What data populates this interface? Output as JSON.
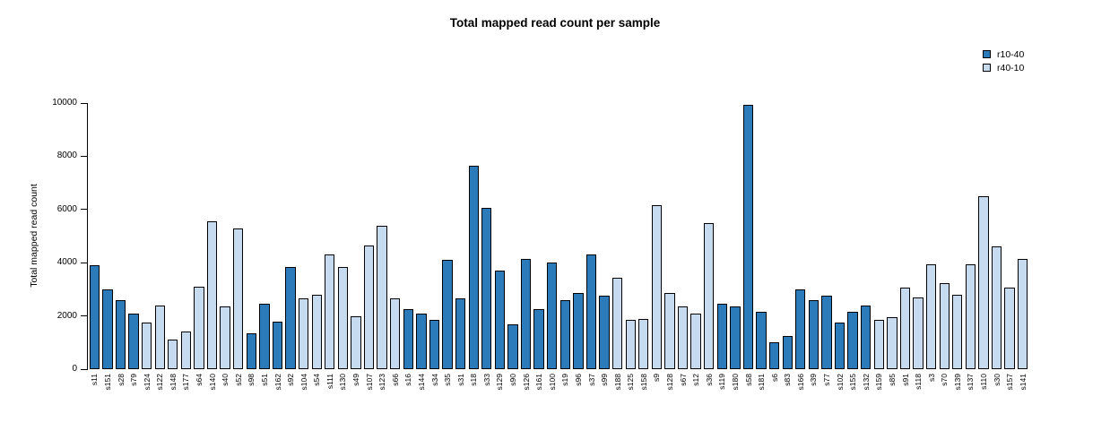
{
  "legend": [
    {
      "label": "r10-40",
      "color": "#2B7BBA"
    },
    {
      "label": "r40-10",
      "color": "#C6DBEF"
    }
  ],
  "chart_data": {
    "type": "bar",
    "title": "Total mapped read count per sample",
    "xlabel": "",
    "ylabel": "Total mapped read count",
    "ylim": [
      0,
      10000
    ],
    "yticks": [
      0,
      2000,
      4000,
      6000,
      8000,
      10000
    ],
    "legend_position": "top-right",
    "grid": false,
    "categories": [
      "s11",
      "s151",
      "s28",
      "s79",
      "s124",
      "s122",
      "s148",
      "s177",
      "s64",
      "s140",
      "s40",
      "s52",
      "s98",
      "s51",
      "s162",
      "s92",
      "s104",
      "s54",
      "s111",
      "s130",
      "s49",
      "s107",
      "s123",
      "s66",
      "s16",
      "s144",
      "s34",
      "s35",
      "s31",
      "s18",
      "s33",
      "s129",
      "s90",
      "s126",
      "s161",
      "s100",
      "s19",
      "s96",
      "s37",
      "s99",
      "s188",
      "s125",
      "s158",
      "s9",
      "s128",
      "s67",
      "s12",
      "s36",
      "s119",
      "s180",
      "s58",
      "s181",
      "s6",
      "s83",
      "s166",
      "s39",
      "s77",
      "s102",
      "s155",
      "s132",
      "s159",
      "s85",
      "s91",
      "s118",
      "s3",
      "s70",
      "s139",
      "s137",
      "s110",
      "s30",
      "s157",
      "s141"
    ],
    "values": [
      3900,
      3000,
      2600,
      2100,
      1750,
      2400,
      1100,
      1400,
      3100,
      5550,
      2350,
      5300,
      1350,
      2450,
      1800,
      3850,
      2650,
      2800,
      4300,
      3850,
      2000,
      4650,
      5400,
      2650,
      2250,
      2100,
      1850,
      4100,
      2650,
      7650,
      6050,
      3700,
      1700,
      4150,
      2250,
      4000,
      2600,
      2850,
      4300,
      2750,
      3450,
      1850,
      1900,
      6150,
      2850,
      2350,
      2100,
      5500,
      2450,
      2350,
      9950,
      2150,
      1000,
      1250,
      3000,
      2600,
      2750,
      1750,
      2150,
      2400,
      1850,
      1950,
      3050,
      2700,
      3950,
      3250,
      2800,
      3950,
      6500,
      4600,
      3050,
      4150
    ],
    "groups": [
      "r10-40",
      "r10-40",
      "r10-40",
      "r10-40",
      "r40-10",
      "r40-10",
      "r40-10",
      "r40-10",
      "r40-10",
      "r40-10",
      "r40-10",
      "r40-10",
      "r10-40",
      "r10-40",
      "r10-40",
      "r10-40",
      "r40-10",
      "r40-10",
      "r40-10",
      "r40-10",
      "r40-10",
      "r40-10",
      "r40-10",
      "r40-10",
      "r10-40",
      "r10-40",
      "r10-40",
      "r10-40",
      "r10-40",
      "r10-40",
      "r10-40",
      "r10-40",
      "r10-40",
      "r10-40",
      "r10-40",
      "r10-40",
      "r10-40",
      "r10-40",
      "r10-40",
      "r10-40",
      "r40-10",
      "r40-10",
      "r40-10",
      "r40-10",
      "r40-10",
      "r40-10",
      "r40-10",
      "r40-10",
      "r10-40",
      "r10-40",
      "r10-40",
      "r10-40",
      "r10-40",
      "r10-40",
      "r10-40",
      "r10-40",
      "r10-40",
      "r10-40",
      "r10-40",
      "r10-40",
      "r40-10",
      "r40-10",
      "r40-10",
      "r40-10",
      "r40-10",
      "r40-10",
      "r40-10",
      "r40-10",
      "r40-10",
      "r40-10",
      "r40-10",
      "r40-10"
    ]
  }
}
